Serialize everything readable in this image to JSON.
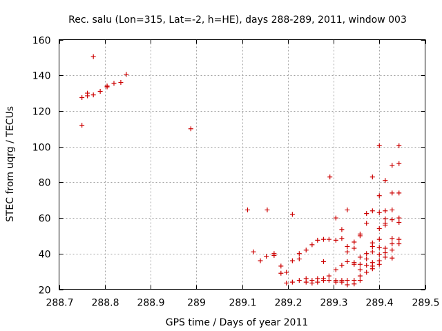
{
  "chart_data": {
    "type": "scatter",
    "title": "Rec. salu (Lon=315, Lat=-2, h=HE), days 288-289, 2011, window 003",
    "xlabel": "GPS time / Days of year 2011",
    "ylabel": "STEC from uqrg / TECUs",
    "xlim": [
      288.7,
      289.5
    ],
    "ylim": [
      20,
      160
    ],
    "xticks": [
      "288.7",
      "288.8",
      "288.9",
      "289",
      "289.1",
      "289.2",
      "289.3",
      "289.4",
      "289.5"
    ],
    "yticks": [
      "20",
      "40",
      "60",
      "80",
      "100",
      "120",
      "140",
      "160"
    ],
    "xtick_values": [
      288.7,
      288.8,
      288.9,
      289.0,
      289.1,
      289.2,
      289.3,
      289.4,
      289.5
    ],
    "ytick_values": [
      20,
      40,
      60,
      80,
      100,
      120,
      140,
      160
    ],
    "grid": true,
    "marker": "+",
    "marker_color": "#cc0000",
    "points": [
      [
        288.75,
        112
      ],
      [
        288.75,
        127.5
      ],
      [
        288.762,
        128.5
      ],
      [
        288.762,
        130
      ],
      [
        288.775,
        129
      ],
      [
        288.775,
        150.5
      ],
      [
        288.79,
        131
      ],
      [
        288.805,
        133.5
      ],
      [
        288.805,
        134
      ],
      [
        288.82,
        135.5
      ],
      [
        288.835,
        136
      ],
      [
        288.847,
        140.5
      ],
      [
        288.988,
        110
      ],
      [
        289.112,
        64.5
      ],
      [
        289.125,
        41
      ],
      [
        289.14,
        36
      ],
      [
        289.153,
        38.5
      ],
      [
        289.155,
        64.5
      ],
      [
        289.17,
        39
      ],
      [
        289.17,
        40
      ],
      [
        289.185,
        33
      ],
      [
        289.185,
        29
      ],
      [
        289.197,
        29.5
      ],
      [
        289.197,
        23.5
      ],
      [
        289.21,
        36
      ],
      [
        289.21,
        24
      ],
      [
        289.21,
        62
      ],
      [
        289.225,
        37
      ],
      [
        289.225,
        40
      ],
      [
        289.225,
        25
      ],
      [
        289.24,
        42
      ],
      [
        289.24,
        26
      ],
      [
        289.24,
        24
      ],
      [
        289.253,
        45
      ],
      [
        289.253,
        25
      ],
      [
        289.253,
        23.5
      ],
      [
        289.265,
        47.5
      ],
      [
        289.265,
        26
      ],
      [
        289.265,
        24
      ],
      [
        289.278,
        48
      ],
      [
        289.278,
        35.5
      ],
      [
        289.278,
        25
      ],
      [
        289.278,
        26
      ],
      [
        289.29,
        48
      ],
      [
        289.29,
        27.5
      ],
      [
        289.29,
        25
      ],
      [
        289.292,
        83
      ],
      [
        289.305,
        60
      ],
      [
        289.305,
        47.5
      ],
      [
        289.305,
        31
      ],
      [
        289.305,
        25
      ],
      [
        289.305,
        24
      ],
      [
        289.318,
        53.5
      ],
      [
        289.318,
        48.5
      ],
      [
        289.318,
        33.5
      ],
      [
        289.318,
        25
      ],
      [
        289.318,
        24
      ],
      [
        289.33,
        64.5
      ],
      [
        289.33,
        44
      ],
      [
        289.33,
        41
      ],
      [
        289.33,
        35.5
      ],
      [
        289.33,
        25
      ],
      [
        289.33,
        22.5
      ],
      [
        289.345,
        46.5
      ],
      [
        289.345,
        43
      ],
      [
        289.345,
        35
      ],
      [
        289.345,
        34
      ],
      [
        289.345,
        25
      ],
      [
        289.345,
        23
      ],
      [
        289.358,
        51
      ],
      [
        289.358,
        50
      ],
      [
        289.358,
        38
      ],
      [
        289.358,
        34
      ],
      [
        289.358,
        31
      ],
      [
        289.358,
        27.5
      ],
      [
        289.358,
        25
      ],
      [
        289.372,
        62.5
      ],
      [
        289.372,
        57
      ],
      [
        289.372,
        40
      ],
      [
        289.372,
        37
      ],
      [
        289.372,
        33.5
      ],
      [
        289.372,
        29.5
      ],
      [
        289.385,
        64
      ],
      [
        289.385,
        83
      ],
      [
        289.385,
        46
      ],
      [
        289.385,
        44
      ],
      [
        289.385,
        41
      ],
      [
        289.385,
        35
      ],
      [
        289.385,
        33
      ],
      [
        289.385,
        31.5
      ],
      [
        289.4,
        100.5
      ],
      [
        289.4,
        72.5
      ],
      [
        289.4,
        63
      ],
      [
        289.4,
        54
      ],
      [
        289.4,
        48
      ],
      [
        289.4,
        43.5
      ],
      [
        289.4,
        39.5
      ],
      [
        289.4,
        36
      ],
      [
        289.4,
        34
      ],
      [
        289.413,
        81
      ],
      [
        289.413,
        64
      ],
      [
        289.413,
        59.5
      ],
      [
        289.413,
        57
      ],
      [
        289.413,
        56
      ],
      [
        289.413,
        43
      ],
      [
        289.413,
        40.5
      ],
      [
        289.413,
        38
      ],
      [
        289.428,
        89.5
      ],
      [
        289.428,
        74
      ],
      [
        289.428,
        64.5
      ],
      [
        289.428,
        59
      ],
      [
        289.428,
        48.5
      ],
      [
        289.428,
        45.5
      ],
      [
        289.428,
        42
      ],
      [
        289.428,
        37.5
      ],
      [
        289.443,
        100.5
      ],
      [
        289.443,
        90.5
      ],
      [
        289.443,
        74
      ],
      [
        289.443,
        60
      ],
      [
        289.443,
        57.5
      ],
      [
        289.443,
        48
      ],
      [
        289.443,
        45.5
      ]
    ]
  }
}
